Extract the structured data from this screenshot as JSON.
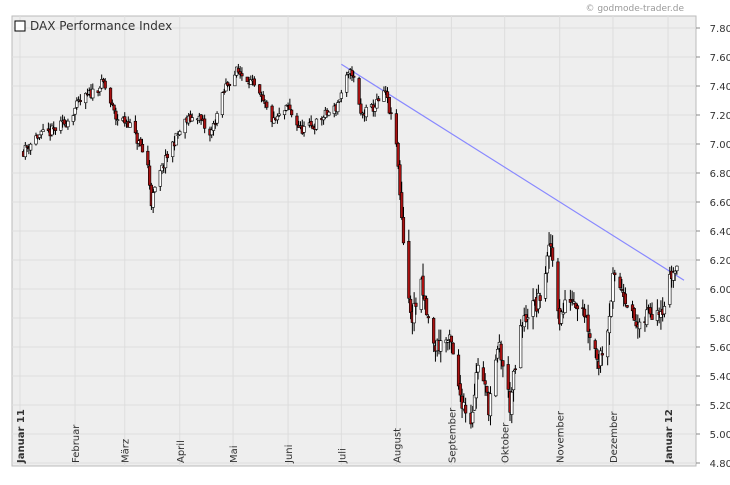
{
  "watermark": "© godmode-trader.de",
  "colors": {
    "plot_background": "#eeeeee",
    "grid": "#dddddd",
    "up_candle": "#ffffff",
    "down_candle": "#aa1111",
    "candle_outline": "#000000",
    "trendline": "#8888ff",
    "text": "#333333"
  },
  "chart_data": {
    "type": "candlestick",
    "title": "DAX Performance Index",
    "legend_position": "top-left",
    "grid": true,
    "y_axis": {
      "position": "right",
      "ylim": [
        4800,
        7900
      ],
      "ticks": [
        7800,
        7600,
        7400,
        7200,
        7000,
        6800,
        6600,
        6400,
        6200,
        6000,
        5800,
        5600,
        5400,
        5200,
        5000,
        4800
      ],
      "tick_labels": [
        "7.800",
        "7.600",
        "7.400",
        "7.200",
        "7.000",
        "6.800",
        "6.600",
        "6.400",
        "6.200",
        "6.000",
        "5.800",
        "5.600",
        "5.400",
        "5.200",
        "5.000",
        "4.800"
      ]
    },
    "x_axis": {
      "start": "2011-01-01",
      "end": "2012-01-10",
      "ticks": [
        {
          "date": "2011-01-01",
          "label": "Januar 11",
          "bold": true
        },
        {
          "date": "2011-02-01",
          "label": "Februar",
          "bold": false
        },
        {
          "date": "2011-03-01",
          "label": "März",
          "bold": false
        },
        {
          "date": "2011-04-01",
          "label": "April",
          "bold": false
        },
        {
          "date": "2011-05-01",
          "label": "Mai",
          "bold": false
        },
        {
          "date": "2011-06-01",
          "label": "Juni",
          "bold": false
        },
        {
          "date": "2011-07-01",
          "label": "Juli",
          "bold": false
        },
        {
          "date": "2011-08-01",
          "label": "August",
          "bold": false
        },
        {
          "date": "2011-09-01",
          "label": "September",
          "bold": false
        },
        {
          "date": "2011-10-01",
          "label": "Oktober",
          "bold": false
        },
        {
          "date": "2011-11-01",
          "label": "November",
          "bold": false
        },
        {
          "date": "2011-12-01",
          "label": "Dezember",
          "bold": false
        },
        {
          "date": "2012-01-01",
          "label": "Januar 12",
          "bold": true
        }
      ]
    },
    "trendline": {
      "start": {
        "date": "2011-07-01",
        "value": 7550
      },
      "end": {
        "date": "2012-01-10",
        "value": 6060
      }
    },
    "series_anchors": [
      {
        "date": "2011-01-03",
        "close": 6950
      },
      {
        "date": "2011-01-10",
        "close": 7050
      },
      {
        "date": "2011-01-18",
        "close": 7080
      },
      {
        "date": "2011-01-27",
        "close": 7150
      },
      {
        "date": "2011-02-03",
        "close": 7280
      },
      {
        "date": "2011-02-10",
        "close": 7350
      },
      {
        "date": "2011-02-17",
        "close": 7420
      },
      {
        "date": "2011-02-24",
        "close": 7180
      },
      {
        "date": "2011-03-03",
        "close": 7150
      },
      {
        "date": "2011-03-10",
        "close": 6980
      },
      {
        "date": "2011-03-14",
        "close": 6850
      },
      {
        "date": "2011-03-16",
        "close": 6600
      },
      {
        "date": "2011-03-21",
        "close": 6800
      },
      {
        "date": "2011-03-28",
        "close": 7000
      },
      {
        "date": "2011-04-04",
        "close": 7150
      },
      {
        "date": "2011-04-11",
        "close": 7200
      },
      {
        "date": "2011-04-18",
        "close": 7050
      },
      {
        "date": "2011-04-27",
        "close": 7400
      },
      {
        "date": "2011-05-03",
        "close": 7500
      },
      {
        "date": "2011-05-10",
        "close": 7450
      },
      {
        "date": "2011-05-17",
        "close": 7300
      },
      {
        "date": "2011-05-24",
        "close": 7150
      },
      {
        "date": "2011-06-01",
        "close": 7250
      },
      {
        "date": "2011-06-08",
        "close": 7100
      },
      {
        "date": "2011-06-15",
        "close": 7120
      },
      {
        "date": "2011-06-22",
        "close": 7200
      },
      {
        "date": "2011-06-28",
        "close": 7250
      },
      {
        "date": "2011-07-04",
        "close": 7450
      },
      {
        "date": "2011-07-07",
        "close": 7500
      },
      {
        "date": "2011-07-12",
        "close": 7200
      },
      {
        "date": "2011-07-19",
        "close": 7250
      },
      {
        "date": "2011-07-26",
        "close": 7350
      },
      {
        "date": "2011-08-01",
        "close": 7000
      },
      {
        "date": "2011-08-04",
        "close": 6500
      },
      {
        "date": "2011-08-09",
        "close": 5800
      },
      {
        "date": "2011-08-15",
        "close": 6000
      },
      {
        "date": "2011-08-22",
        "close": 5600
      },
      {
        "date": "2011-08-29",
        "close": 5650
      },
      {
        "date": "2011-09-01",
        "close": 5600
      },
      {
        "date": "2011-09-05",
        "close": 5300
      },
      {
        "date": "2011-09-12",
        "close": 5100
      },
      {
        "date": "2011-09-16",
        "close": 5500
      },
      {
        "date": "2011-09-22",
        "close": 5200
      },
      {
        "date": "2011-09-28",
        "close": 5600
      },
      {
        "date": "2011-10-04",
        "close": 5200
      },
      {
        "date": "2011-10-10",
        "close": 5700
      },
      {
        "date": "2011-10-14",
        "close": 5850
      },
      {
        "date": "2011-10-20",
        "close": 5900
      },
      {
        "date": "2011-10-27",
        "close": 6300
      },
      {
        "date": "2011-11-01",
        "close": 5800
      },
      {
        "date": "2011-11-07",
        "close": 5950
      },
      {
        "date": "2011-11-14",
        "close": 5900
      },
      {
        "date": "2011-11-17",
        "close": 5750
      },
      {
        "date": "2011-11-23",
        "close": 5500
      },
      {
        "date": "2011-11-28",
        "close": 5750
      },
      {
        "date": "2011-12-01",
        "close": 6050
      },
      {
        "date": "2011-12-07",
        "close": 6000
      },
      {
        "date": "2011-12-12",
        "close": 5800
      },
      {
        "date": "2011-12-16",
        "close": 5700
      },
      {
        "date": "2011-12-21",
        "close": 5850
      },
      {
        "date": "2011-12-30",
        "close": 5900
      },
      {
        "date": "2012-01-03",
        "close": 6100
      },
      {
        "date": "2012-01-06",
        "close": 6150
      }
    ]
  }
}
